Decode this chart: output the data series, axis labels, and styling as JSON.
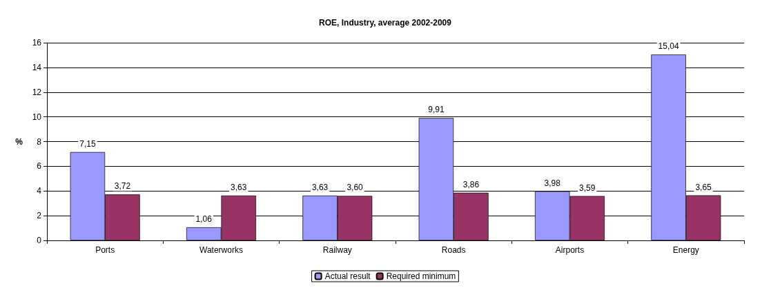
{
  "chart_data": {
    "type": "bar",
    "title": "ROE, Industry, average 2002-2009",
    "ylabel": "%",
    "categories": [
      "Ports",
      "Waterworks",
      "Railway",
      "Roads",
      "Airports",
      "Energy"
    ],
    "series": [
      {
        "name": "Actual result",
        "color": "#9999ff",
        "values": [
          7.15,
          1.06,
          3.63,
          9.91,
          3.98,
          15.04
        ],
        "value_labels": [
          "7,15",
          "1,06",
          "3,63",
          "9,91",
          "3,98",
          "15,04"
        ]
      },
      {
        "name": "Required minimum",
        "color": "#993366",
        "values": [
          3.72,
          3.63,
          3.6,
          3.86,
          3.59,
          3.65
        ],
        "value_labels": [
          "3,72",
          "3,63",
          "3,60",
          "3,86",
          "3,59",
          "3,65"
        ]
      }
    ],
    "ylim": [
      0,
      16
    ],
    "yticks": [
      0,
      2,
      4,
      6,
      8,
      10,
      12,
      14,
      16
    ],
    "grid": "y",
    "legend": "bottom"
  }
}
